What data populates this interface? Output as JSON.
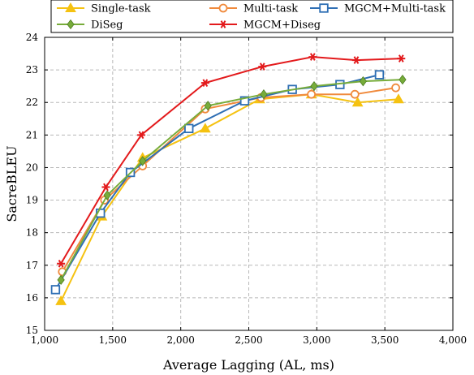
{
  "chart_data": {
    "type": "line",
    "title": "",
    "xlabel": "Average Lagging (AL, ms)",
    "ylabel": "SacreBLEU",
    "xlim": [
      1000,
      4000
    ],
    "ylim": [
      15,
      24
    ],
    "xticks": [
      1000,
      1500,
      2000,
      2500,
      3000,
      3500,
      4000
    ],
    "xtick_labels": [
      "1,000",
      "1,500",
      "2,000",
      "2,500",
      "3,000",
      "3,500",
      "4,000"
    ],
    "yticks": [
      15,
      16,
      17,
      18,
      19,
      20,
      21,
      22,
      23,
      24
    ],
    "ytick_labels": [
      "15",
      "16",
      "17",
      "18",
      "19",
      "20",
      "21",
      "22",
      "23",
      "24"
    ],
    "grid": true,
    "legend_position": "top",
    "series": [
      {
        "name": "Single-task",
        "color": "#f5c211",
        "marker": "triangle",
        "x": [
          1120,
          1420,
          1720,
          2180,
          2580,
          2960,
          3300,
          3600
        ],
        "y": [
          15.9,
          18.5,
          20.3,
          21.2,
          22.1,
          22.25,
          22.0,
          22.1
        ]
      },
      {
        "name": "Multi-task",
        "color": "#f08a3c",
        "marker": "circle",
        "x": [
          1130,
          1440,
          1720,
          2180,
          2590,
          2960,
          3280,
          3580
        ],
        "y": [
          16.8,
          19.0,
          20.05,
          21.8,
          22.15,
          22.25,
          22.25,
          22.45
        ]
      },
      {
        "name": "MGCM+Multi-task",
        "color": "#2f6fb4",
        "marker": "square",
        "x": [
          1080,
          1410,
          1630,
          2060,
          2470,
          2820,
          3170,
          3460
        ],
        "y": [
          16.25,
          18.6,
          19.85,
          21.2,
          22.05,
          22.4,
          22.55,
          22.85
        ]
      },
      {
        "name": "DiSeg",
        "color": "#77ac3a",
        "marker": "diamond",
        "x": [
          1120,
          1460,
          1720,
          2200,
          2610,
          2980,
          3340,
          3630
        ],
        "y": [
          16.55,
          19.15,
          20.2,
          21.9,
          22.25,
          22.5,
          22.65,
          22.7
        ]
      },
      {
        "name": "MGCM+Diseg",
        "color": "#e31a1c",
        "marker": "star",
        "x": [
          1120,
          1450,
          1710,
          2180,
          2600,
          2970,
          3290,
          3620
        ],
        "y": [
          17.05,
          19.4,
          21.0,
          22.6,
          23.1,
          23.4,
          23.3,
          23.35
        ]
      }
    ]
  }
}
